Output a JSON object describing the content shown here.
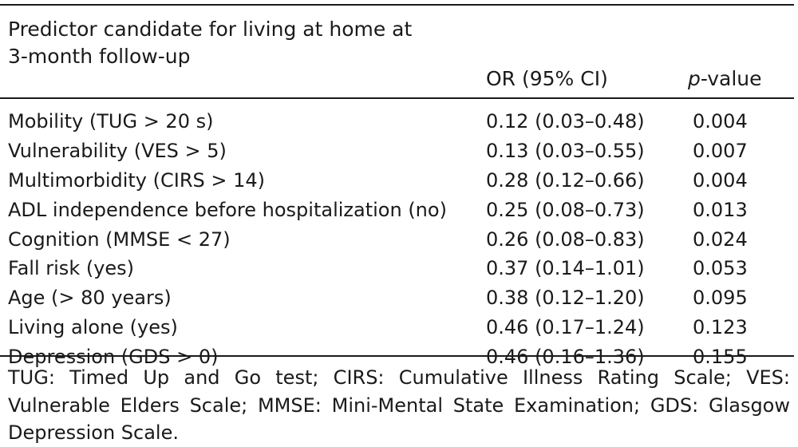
{
  "table": {
    "headers": {
      "predictor": "Predictor candidate for living at home at\n3-month follow-up",
      "or": "OR (95% CI)",
      "p_italic": "p",
      "p_rest": "-value"
    },
    "rows": [
      {
        "predictor": "Mobility (TUG > 20 s)",
        "or": "0.12 (0.03–0.48)",
        "p": "0.004"
      },
      {
        "predictor": "Vulnerability (VES > 5)",
        "or": "0.13 (0.03–0.55)",
        "p": "0.007"
      },
      {
        "predictor": "Multimorbidity (CIRS > 14)",
        "or": "0.28 (0.12–0.66)",
        "p": "0.004"
      },
      {
        "predictor": "ADL independence before hospitalization (no)",
        "or": "0.25 (0.08–0.73)",
        "p": "0.013"
      },
      {
        "predictor": "Cognition (MMSE < 27)",
        "or": "0.26 (0.08–0.83)",
        "p": "0.024"
      },
      {
        "predictor": "Fall risk (yes)",
        "or": "0.37 (0.14–1.01)",
        "p": "0.053"
      },
      {
        "predictor": "Age (> 80 years)",
        "or": "0.38 (0.12–1.20)",
        "p": "0.095"
      },
      {
        "predictor": "Living alone (yes)",
        "or": "0.46 (0.17–1.24)",
        "p": "0.123"
      },
      {
        "predictor": "Depression (GDS > 0)",
        "or": "0.46 (0.16–1.36)",
        "p": "0.155"
      }
    ],
    "footnote": "TUG: Timed Up and Go test; CIRS: Cumulative Illness Rating Scale; VES: Vulnerable Elders Scale; MMSE: Mini-Mental State Examination; GDS: Glasgow Depression Scale."
  }
}
